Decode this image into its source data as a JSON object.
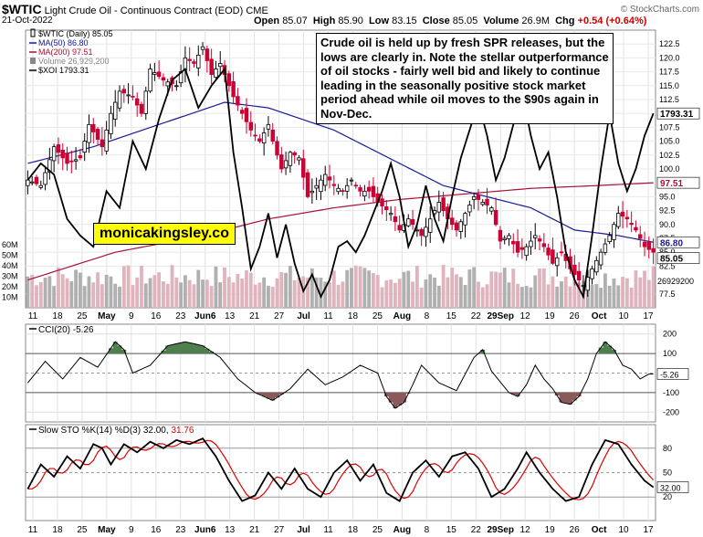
{
  "header": {
    "symbol": "$WTIC",
    "name": "Light Crude Oil - Continuous Contract (EOD)",
    "exchange": "CME",
    "date": "21-Oct-2022",
    "open_label": "Open",
    "open": "85.07",
    "high_label": "High",
    "high": "85.90",
    "low_label": "Low",
    "low": "83.15",
    "close_label": "Close",
    "close": "85.05",
    "volume_label": "Volume",
    "volume": "26.9M",
    "chg_label": "Chg",
    "chg": "+0.54 (+0.64%)",
    "copyright": "© StockCharts.com"
  },
  "annotation": "Crude oil is held up by fresh SPR releases, but the lows are clearly in. Note the stellar outperformance of oil stocks - fairly well bid and likely to continue leading in the seasonally positive stock market period ahead while oil moves to the $90s again in Nov-Dec.",
  "brand": "monicakingsley.co",
  "colors": {
    "up": "#000000",
    "down": "#cc0033",
    "ma50": "#1a1a99",
    "ma200": "#aa1133",
    "xoi": "#000000",
    "volume": "#b0b0b0",
    "cci_fill_pos": "#4f7f4f",
    "cci_fill_neg": "#8a5a5a",
    "sto_k": "#000000",
    "sto_d": "#dd0000"
  },
  "chart_data": [
    {
      "type": "candlestick",
      "title": "$WTIC (Daily) 85.05",
      "legend": [
        "$WTIC (Daily) 85.05",
        "MA(50) 86.80",
        "MA(200) 97.51",
        "Volume 26,929,200",
        "$XOI 1793.31"
      ],
      "x_labels": [
        "11",
        "18",
        "25",
        "May",
        "9",
        "16",
        "23",
        "Jun6",
        "13",
        "21",
        "27",
        "Jul",
        "11",
        "18",
        "25",
        "Aug",
        "8",
        "15",
        "22",
        "29Sep",
        "12",
        "19",
        "26",
        "Oct",
        "10",
        "17"
      ],
      "ylim": [
        75,
        125
      ],
      "y_ticks": [
        77.5,
        82.5,
        85.0,
        87.5,
        90.0,
        92.5,
        95.0,
        97.5,
        100.0,
        102.5,
        105.0,
        107.5,
        110.0,
        112.5,
        115.0,
        117.5,
        120.0,
        122.5
      ],
      "y_tick_labels": [
        "77.5",
        "82.5",
        "85.0",
        "87.5",
        "90.0",
        "92.5",
        "95.0",
        "97.5",
        "100.0",
        "102.5",
        "105.0",
        "107.5",
        "110.0",
        "112.5",
        "115.0",
        "117.5",
        "120.0",
        "122.5"
      ],
      "close_anchors": [
        [
          0,
          98
        ],
        [
          3,
          97
        ],
        [
          6,
          104
        ],
        [
          9,
          101
        ],
        [
          12,
          102
        ],
        [
          14,
          108
        ],
        [
          17,
          104
        ],
        [
          19,
          110
        ],
        [
          21,
          114
        ],
        [
          24,
          113
        ],
        [
          26,
          110
        ],
        [
          28,
          118
        ],
        [
          31,
          116
        ],
        [
          34,
          115
        ],
        [
          36,
          120
        ],
        [
          38,
          119
        ],
        [
          40,
          122
        ],
        [
          42,
          117
        ],
        [
          44,
          119
        ],
        [
          47,
          113
        ],
        [
          49,
          110
        ],
        [
          51,
          107
        ],
        [
          53,
          105
        ],
        [
          55,
          108
        ],
        [
          56,
          105
        ],
        [
          58,
          100
        ],
        [
          60,
          103
        ],
        [
          62,
          102
        ],
        [
          64,
          95
        ],
        [
          66,
          97
        ],
        [
          68,
          99
        ],
        [
          70,
          97
        ],
        [
          72,
          96
        ],
        [
          74,
          98
        ],
        [
          76,
          96
        ],
        [
          78,
          96
        ],
        [
          80,
          94
        ],
        [
          83,
          92
        ],
        [
          85,
          89
        ],
        [
          87,
          91
        ],
        [
          90,
          88
        ],
        [
          92,
          91
        ],
        [
          94,
          94
        ],
        [
          96,
          91
        ],
        [
          98,
          89
        ],
        [
          100,
          92
        ],
        [
          102,
          95
        ],
        [
          104,
          94
        ],
        [
          106,
          93
        ],
        [
          108,
          87
        ],
        [
          110,
          88
        ],
        [
          112,
          85
        ],
        [
          114,
          86
        ],
        [
          116,
          88
        ],
        [
          118,
          86
        ],
        [
          120,
          83
        ],
        [
          122,
          85
        ],
        [
          124,
          82
        ],
        [
          126,
          80
        ],
        [
          127,
          79
        ],
        [
          129,
          82
        ],
        [
          131,
          85
        ],
        [
          133,
          88
        ],
        [
          135,
          92
        ],
        [
          137,
          91
        ],
        [
          139,
          89
        ],
        [
          141,
          86
        ],
        [
          143,
          85
        ]
      ],
      "ma50": {
        "label": "MA(50)",
        "last": 86.8,
        "anchors": [
          [
            0,
            101
          ],
          [
            15,
            104
          ],
          [
            30,
            108
          ],
          [
            45,
            112
          ],
          [
            55,
            111
          ],
          [
            70,
            107
          ],
          [
            85,
            101
          ],
          [
            95,
            97
          ],
          [
            105,
            95
          ],
          [
            115,
            93
          ],
          [
            125,
            89
          ],
          [
            135,
            88
          ],
          [
            143,
            86.8
          ]
        ]
      },
      "ma200": {
        "label": "MA(200)",
        "last": 97.51,
        "anchors": [
          [
            0,
            80
          ],
          [
            20,
            85
          ],
          [
            40,
            88
          ],
          [
            55,
            91
          ],
          [
            70,
            93
          ],
          [
            85,
            94.5
          ],
          [
            100,
            95.5
          ],
          [
            115,
            96.5
          ],
          [
            130,
            97
          ],
          [
            143,
            97.51
          ]
        ]
      },
      "xoi": {
        "label": "$XOI",
        "last": 1793.31,
        "last_label": "1793.31",
        "anchors": [
          [
            0,
            98
          ],
          [
            3,
            101
          ],
          [
            6,
            99
          ],
          [
            9,
            91
          ],
          [
            12,
            88
          ],
          [
            15,
            86
          ],
          [
            18,
            96
          ],
          [
            21,
            93
          ],
          [
            24,
            105
          ],
          [
            27,
            100
          ],
          [
            30,
            109
          ],
          [
            33,
            116
          ],
          [
            36,
            118
          ],
          [
            39,
            111
          ],
          [
            42,
            115
          ],
          [
            45,
            118
          ],
          [
            47,
            103
          ],
          [
            49,
            93
          ],
          [
            51,
            82
          ],
          [
            53,
            86
          ],
          [
            55,
            92
          ],
          [
            57,
            84
          ],
          [
            59,
            90
          ],
          [
            61,
            83
          ],
          [
            63,
            78
          ],
          [
            65,
            81
          ],
          [
            67,
            77
          ],
          [
            69,
            80
          ],
          [
            71,
            86
          ],
          [
            73,
            87
          ],
          [
            75,
            85
          ],
          [
            77,
            88
          ],
          [
            79,
            92
          ],
          [
            81,
            96
          ],
          [
            83,
            101
          ],
          [
            85,
            95
          ],
          [
            87,
            86
          ],
          [
            89,
            90
          ],
          [
            91,
            97
          ],
          [
            93,
            91
          ],
          [
            95,
            87
          ],
          [
            97,
            95
          ],
          [
            99,
            102
          ],
          [
            101,
            107
          ],
          [
            103,
            112
          ],
          [
            105,
            106
          ],
          [
            107,
            98
          ],
          [
            109,
            102
          ],
          [
            111,
            108
          ],
          [
            113,
            114
          ],
          [
            115,
            106
          ],
          [
            117,
            100
          ],
          [
            119,
            103
          ],
          [
            121,
            95
          ],
          [
            123,
            85
          ],
          [
            125,
            80
          ],
          [
            127,
            77
          ],
          [
            129,
            88
          ],
          [
            131,
            100
          ],
          [
            133,
            110
          ],
          [
            135,
            101
          ],
          [
            137,
            96
          ],
          [
            139,
            100
          ],
          [
            141,
            106
          ],
          [
            143,
            110
          ]
        ]
      },
      "price_label_right": "85.05",
      "ma50_label_right": "86.80",
      "ma200_label_right": "97.51",
      "xoi_label_right": "1793.31"
    },
    {
      "type": "bar",
      "title": "Volume",
      "y_ticks": [
        10,
        20,
        30,
        40,
        50,
        60
      ],
      "y_tick_labels": [
        "10M",
        "20M",
        "30M",
        "40M",
        "50M",
        "60M"
      ],
      "last_label": "26929200",
      "values_millions_base": 30
    },
    {
      "type": "line",
      "title": "CCI(20) -5.26",
      "ylim": [
        -250,
        250
      ],
      "y_ticks": [
        200,
        100,
        -100,
        -200
      ],
      "y_tick_labels": [
        "200",
        "100",
        "-100",
        "-200"
      ],
      "last_label": "-5.26",
      "anchors": [
        [
          0,
          -50
        ],
        [
          4,
          60
        ],
        [
          8,
          -30
        ],
        [
          12,
          80
        ],
        [
          16,
          30
        ],
        [
          20,
          160
        ],
        [
          22,
          120
        ],
        [
          24,
          0
        ],
        [
          28,
          40
        ],
        [
          32,
          140
        ],
        [
          36,
          160
        ],
        [
          40,
          140
        ],
        [
          44,
          80
        ],
        [
          48,
          -30
        ],
        [
          52,
          -100
        ],
        [
          56,
          -140
        ],
        [
          60,
          -80
        ],
        [
          64,
          20
        ],
        [
          68,
          -60
        ],
        [
          72,
          -20
        ],
        [
          76,
          40
        ],
        [
          80,
          0
        ],
        [
          82,
          -120
        ],
        [
          84,
          -180
        ],
        [
          86,
          -150
        ],
        [
          88,
          -60
        ],
        [
          90,
          40
        ],
        [
          94,
          -50
        ],
        [
          98,
          -90
        ],
        [
          102,
          80
        ],
        [
          104,
          120
        ],
        [
          106,
          10
        ],
        [
          110,
          -100
        ],
        [
          112,
          -120
        ],
        [
          114,
          -60
        ],
        [
          116,
          40
        ],
        [
          118,
          -30
        ],
        [
          120,
          -80
        ],
        [
          122,
          -150
        ],
        [
          124,
          -160
        ],
        [
          126,
          -120
        ],
        [
          128,
          -30
        ],
        [
          130,
          100
        ],
        [
          132,
          160
        ],
        [
          134,
          120
        ],
        [
          136,
          40
        ],
        [
          138,
          20
        ],
        [
          140,
          -30
        ],
        [
          142,
          -5
        ]
      ]
    },
    {
      "type": "line",
      "title": "Slow STO %K(14) %D(3) 32.00, 31.76",
      "legend": [
        "%K(14)",
        "%D(3)"
      ],
      "k_last": "32.00",
      "d_last": "31.76",
      "ylim": [
        0,
        100
      ],
      "y_ticks": [
        80,
        50,
        20
      ],
      "y_tick_labels": [
        "80",
        "50",
        "20"
      ],
      "k_anchors": [
        [
          0,
          30
        ],
        [
          3,
          60
        ],
        [
          6,
          45
        ],
        [
          9,
          70
        ],
        [
          12,
          55
        ],
        [
          15,
          85
        ],
        [
          17,
          80
        ],
        [
          19,
          60
        ],
        [
          22,
          85
        ],
        [
          25,
          75
        ],
        [
          28,
          88
        ],
        [
          31,
          80
        ],
        [
          34,
          90
        ],
        [
          37,
          85
        ],
        [
          40,
          92
        ],
        [
          43,
          70
        ],
        [
          46,
          40
        ],
        [
          49,
          15
        ],
        [
          52,
          22
        ],
        [
          55,
          50
        ],
        [
          58,
          30
        ],
        [
          61,
          55
        ],
        [
          64,
          30
        ],
        [
          67,
          20
        ],
        [
          70,
          50
        ],
        [
          73,
          65
        ],
        [
          76,
          40
        ],
        [
          79,
          60
        ],
        [
          82,
          25
        ],
        [
          85,
          15
        ],
        [
          88,
          50
        ],
        [
          91,
          65
        ],
        [
          94,
          45
        ],
        [
          97,
          70
        ],
        [
          100,
          75
        ],
        [
          103,
          55
        ],
        [
          106,
          20
        ],
        [
          109,
          30
        ],
        [
          112,
          55
        ],
        [
          114,
          75
        ],
        [
          117,
          50
        ],
        [
          120,
          30
        ],
        [
          123,
          15
        ],
        [
          126,
          20
        ],
        [
          129,
          60
        ],
        [
          132,
          90
        ],
        [
          135,
          85
        ],
        [
          138,
          60
        ],
        [
          141,
          40
        ],
        [
          143,
          32
        ]
      ],
      "d_lag": 2
    },
    {
      "type": "axis",
      "x_labels": [
        "11",
        "18",
        "25",
        "May",
        "9",
        "16",
        "23",
        "Jun6",
        "13",
        "21",
        "27",
        "Jul",
        "11",
        "18",
        "25",
        "Aug",
        "8",
        "15",
        "22",
        "29Sep",
        "12",
        "19",
        "26",
        "Oct",
        "10",
        "17"
      ]
    }
  ]
}
